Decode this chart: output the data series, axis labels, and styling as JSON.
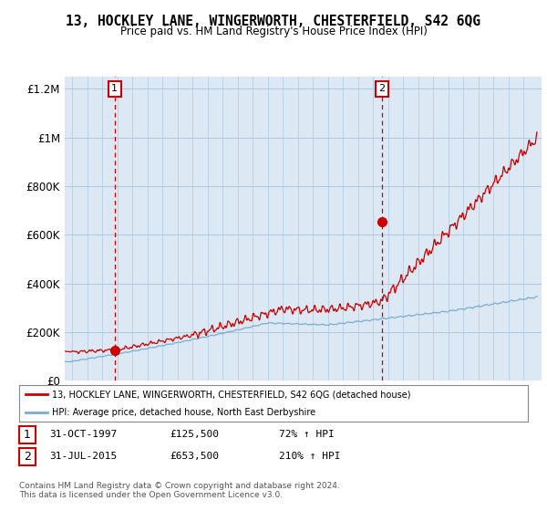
{
  "title": "13, HOCKLEY LANE, WINGERWORTH, CHESTERFIELD, S42 6QG",
  "subtitle": "Price paid vs. HM Land Registry's House Price Index (HPI)",
  "background_color": "#ffffff",
  "plot_bg_color": "#dce9f5",
  "grid_color": "#b0c8e0",
  "red_color": "#cc0000",
  "blue_color": "#7aadd4",
  "marker1_x": 1997.83,
  "marker1_y": 125500,
  "marker2_x": 2015.58,
  "marker2_y": 653500,
  "xmin": 1994.5,
  "xmax": 2026.2,
  "ymin": 0,
  "ymax": 1250000,
  "yticks": [
    0,
    200000,
    400000,
    600000,
    800000,
    1000000,
    1200000
  ],
  "ytick_labels": [
    "£0",
    "£200K",
    "£400K",
    "£600K",
    "£800K",
    "£1M",
    "£1.2M"
  ],
  "xticks": [
    1995,
    1996,
    1997,
    1998,
    1999,
    2000,
    2001,
    2002,
    2003,
    2004,
    2005,
    2006,
    2007,
    2008,
    2009,
    2010,
    2011,
    2012,
    2013,
    2014,
    2015,
    2016,
    2017,
    2018,
    2019,
    2020,
    2021,
    2022,
    2023,
    2024,
    2025
  ],
  "legend_line1": "13, HOCKLEY LANE, WINGERWORTH, CHESTERFIELD, S42 6QG (detached house)",
  "legend_line2": "HPI: Average price, detached house, North East Derbyshire",
  "table_row1": [
    "1",
    "31-OCT-1997",
    "£125,500",
    "72% ↑ HPI"
  ],
  "table_row2": [
    "2",
    "31-JUL-2015",
    "£653,500",
    "210% ↑ HPI"
  ],
  "footer": "Contains HM Land Registry data © Crown copyright and database right 2024.\nThis data is licensed under the Open Government Licence v3.0.",
  "vline1_x": 1997.83,
  "vline2_x": 2015.58
}
